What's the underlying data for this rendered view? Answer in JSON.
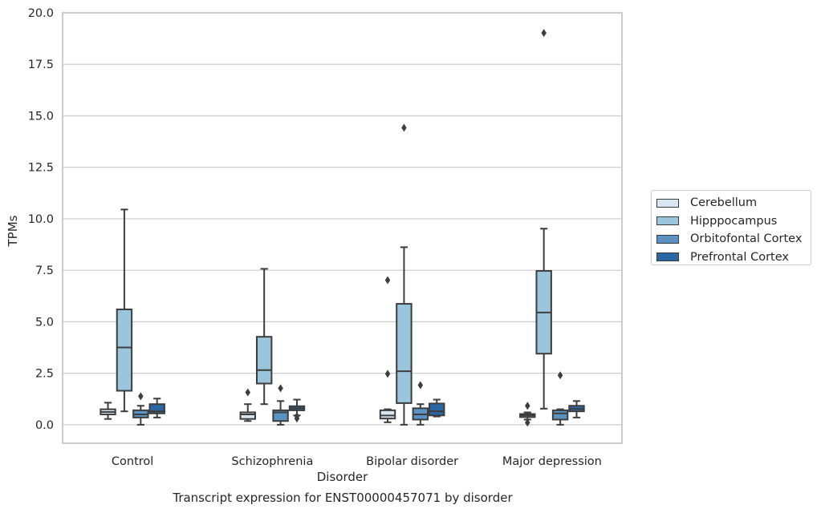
{
  "caption": "Transcript expression for ENST00000457071 by disorder",
  "chart_data": {
    "type": "box",
    "title": "",
    "xlabel": "Disorder",
    "ylabel": "TPMs",
    "ylim": [
      -0.9,
      20.0
    ],
    "yticks": [
      "0.0",
      "2.5",
      "5.0",
      "7.5",
      "10.0",
      "12.5",
      "15.0",
      "17.5",
      "20.0"
    ],
    "grid": true,
    "legend_position": "right",
    "categories": [
      "Control",
      "Schizophrenia",
      "Bipolar disorder",
      "Major depression"
    ],
    "series": [
      {
        "name": "Cerebellum",
        "color": "#d6e6f4",
        "boxes": [
          {
            "whislo": 0.28,
            "q1": 0.5,
            "med": 0.62,
            "q3": 0.75,
            "whishi": 1.07,
            "fliers": []
          },
          {
            "whislo": 0.18,
            "q1": 0.28,
            "med": 0.5,
            "q3": 0.6,
            "whishi": 1.0,
            "fliers": [
              1.57
            ]
          },
          {
            "whislo": 0.12,
            "q1": 0.3,
            "med": 0.45,
            "q3": 0.7,
            "whishi": 0.75,
            "fliers": [
              7.02,
              2.47
            ]
          },
          {
            "whislo": 0.25,
            "q1": 0.37,
            "med": 0.45,
            "q3": 0.52,
            "whishi": 0.6,
            "fliers": [
              0.92,
              0.1
            ]
          }
        ]
      },
      {
        "name": "Hipppocampus",
        "color": "#9ac5dd",
        "boxes": [
          {
            "whislo": 0.65,
            "q1": 1.65,
            "med": 3.75,
            "q3": 5.6,
            "whishi": 10.45,
            "fliers": []
          },
          {
            "whislo": 1.0,
            "q1": 2.0,
            "med": 2.65,
            "q3": 4.27,
            "whishi": 7.57,
            "fliers": []
          },
          {
            "whislo": 0.0,
            "q1": 1.05,
            "med": 2.6,
            "q3": 5.87,
            "whishi": 8.62,
            "fliers": [
              14.42
            ]
          },
          {
            "whislo": 0.78,
            "q1": 3.45,
            "med": 5.45,
            "q3": 7.47,
            "whishi": 9.52,
            "fliers": [
              19.02
            ]
          }
        ]
      },
      {
        "name": "Orbitofontal Cortex",
        "color": "#5a93c2",
        "boxes": [
          {
            "whislo": 0.0,
            "q1": 0.35,
            "med": 0.5,
            "q3": 0.7,
            "whishi": 0.92,
            "fliers": [
              1.38
            ]
          },
          {
            "whislo": 0.0,
            "q1": 0.18,
            "med": 0.6,
            "q3": 0.7,
            "whishi": 1.15,
            "fliers": [
              1.77
            ]
          },
          {
            "whislo": 0.0,
            "q1": 0.25,
            "med": 0.5,
            "q3": 0.8,
            "whishi": 1.0,
            "fliers": [
              1.92
            ]
          },
          {
            "whislo": 0.0,
            "q1": 0.25,
            "med": 0.55,
            "q3": 0.7,
            "whishi": 0.75,
            "fliers": [
              2.4
            ]
          }
        ]
      },
      {
        "name": "Prefrontal Cortex",
        "color": "#2a66a3",
        "boxes": [
          {
            "whislo": 0.35,
            "q1": 0.55,
            "med": 0.65,
            "q3": 1.0,
            "whishi": 1.27,
            "fliers": []
          },
          {
            "whislo": 0.45,
            "q1": 0.7,
            "med": 0.8,
            "q3": 0.9,
            "whishi": 1.22,
            "fliers": [
              0.3,
              0.42
            ]
          },
          {
            "whislo": 0.4,
            "q1": 0.45,
            "med": 0.65,
            "q3": 1.03,
            "whishi": 1.22,
            "fliers": []
          },
          {
            "whislo": 0.35,
            "q1": 0.65,
            "med": 0.77,
            "q3": 0.92,
            "whishi": 1.15,
            "fliers": []
          }
        ]
      }
    ]
  }
}
